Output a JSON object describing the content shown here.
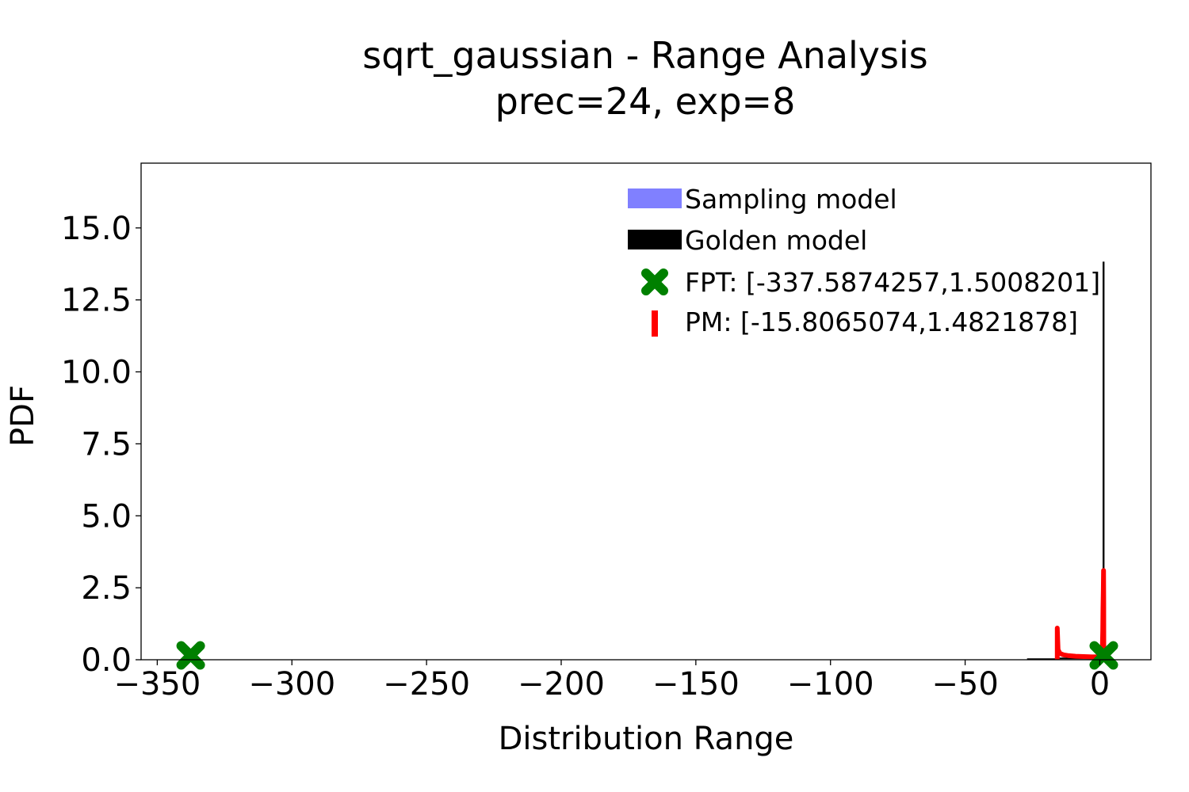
{
  "chart_data": {
    "type": "line",
    "title": "sqrt_gaussian - Range Analysis",
    "subtitle": "prec=24, exp=8",
    "xlabel": "Distribution Range",
    "ylabel": "PDF",
    "xlim": [
      -356,
      19
    ],
    "ylim": [
      0,
      17.25
    ],
    "xticks": [
      -350,
      -300,
      -250,
      -200,
      -150,
      -100,
      -50,
      0
    ],
    "xtick_labels": [
      "−350",
      "−300",
      "−250",
      "−200",
      "−150",
      "−100",
      "−50",
      "0"
    ],
    "yticks": [
      0,
      2.5,
      5,
      7.5,
      10,
      12.5,
      15
    ],
    "ytick_labels": [
      "0.0",
      "2.5",
      "5.0",
      "7.5",
      "10.0",
      "12.5",
      "15.0"
    ],
    "grid": false,
    "legend_position": "top-right",
    "colors": {
      "sampling": "#8080ff",
      "golden": "#000000",
      "fpt": "#008000",
      "pm": "#ff0000"
    },
    "series": [
      {
        "name": "Sampling model",
        "kind": "histogram",
        "color": "#8080ff",
        "x": [],
        "y": []
      },
      {
        "name": "Golden model",
        "kind": "histogram",
        "color": "#000000",
        "x": [
          -27,
          -15.8,
          -15.8,
          1.35,
          1.35,
          1.45,
          1.45,
          1.5
        ],
        "y": [
          0.02,
          0.02,
          0.05,
          0.05,
          13.8,
          13.8,
          0.2,
          0
        ]
      },
      {
        "name": "PM: [-15.8065074,1.4821878]",
        "kind": "line",
        "color": "#ff0000",
        "x": [
          -15.8,
          -15.8,
          -15.5,
          -14.8,
          -13.5,
          -11.5,
          -9,
          -6,
          -3,
          -1,
          0,
          0.5,
          0.8,
          1.0,
          1.1,
          1.2,
          1.3,
          1.4,
          1.45,
          1.48
        ],
        "y": [
          0,
          1.1,
          0.35,
          0.22,
          0.17,
          0.14,
          0.12,
          0.11,
          0.1,
          0.1,
          0.1,
          0.12,
          0.2,
          0.5,
          1.0,
          1.8,
          2.4,
          3.1,
          2.0,
          0.2
        ]
      },
      {
        "name": "FPT: [-337.5874257,1.5008201]",
        "kind": "scatter",
        "color": "#008000",
        "marker": "X",
        "x": [
          -337.5874257,
          1.5008201
        ],
        "y": [
          0.15,
          0.15
        ]
      }
    ],
    "legend": [
      {
        "label": "Sampling model",
        "symbol": "patch",
        "color": "#8080ff"
      },
      {
        "label": "Golden model",
        "symbol": "patch",
        "color": "#000000"
      },
      {
        "label": "FPT: [-337.5874257,1.5008201]",
        "symbol": "x-marker",
        "color": "#008000"
      },
      {
        "label": "PM: [-15.8065074,1.4821878]",
        "symbol": "line",
        "color": "#ff0000"
      }
    ]
  }
}
